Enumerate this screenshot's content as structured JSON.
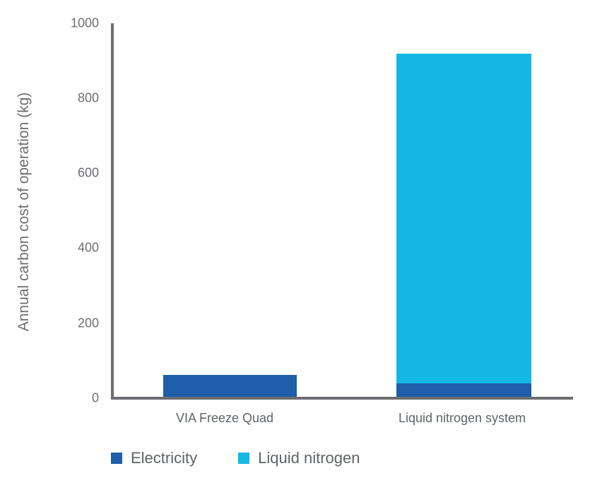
{
  "chart_data": {
    "type": "bar",
    "stacked": true,
    "title": "",
    "xlabel": "",
    "ylabel": "Annual carbon cost of operation (kg)",
    "ylim": [
      0,
      1000
    ],
    "yticks": [
      0,
      200,
      400,
      600,
      800,
      1000
    ],
    "categories": [
      "VIA Freeze Quad",
      "Liquid nitrogen system"
    ],
    "series": [
      {
        "name": "Electricity",
        "color": "#1f5ea8",
        "values": [
          62,
          40
        ]
      },
      {
        "name": "Liquid nitrogen",
        "color": "#14b6e3",
        "values": [
          0,
          879
        ]
      }
    ],
    "grid": false,
    "legend_position": "bottom-left"
  },
  "axis": {
    "ylabel": "Annual carbon cost of operation (kg)",
    "ticks": [
      "0",
      "200",
      "400",
      "600",
      "800",
      "1000"
    ]
  },
  "categories": [
    "VIA Freeze Quad",
    "Liquid nitrogen system"
  ],
  "legend": [
    {
      "label": "Electricity",
      "color": "#1f5ea8"
    },
    {
      "label": "Liquid nitrogen",
      "color": "#14b6e3"
    }
  ]
}
